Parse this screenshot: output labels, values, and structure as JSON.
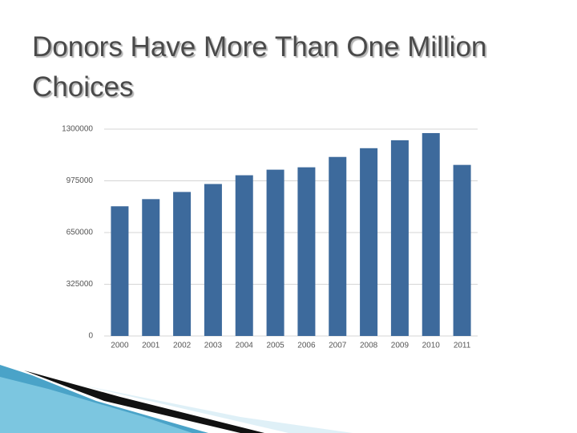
{
  "chart_data": {
    "type": "bar",
    "title": "Donors Have More Than One Million Choices",
    "categories": [
      "2000",
      "2001",
      "2002",
      "2003",
      "2004",
      "2005",
      "2006",
      "2007",
      "2008",
      "2009",
      "2010",
      "2011"
    ],
    "values": [
      815000,
      860000,
      905000,
      955000,
      1010000,
      1045000,
      1060000,
      1125000,
      1180000,
      1230000,
      1275000,
      1075000
    ],
    "color": "#3d6a9c",
    "ylim": [
      0,
      1300000
    ],
    "yticks": [
      0,
      325000,
      650000,
      975000,
      1300000
    ],
    "grid": true
  }
}
